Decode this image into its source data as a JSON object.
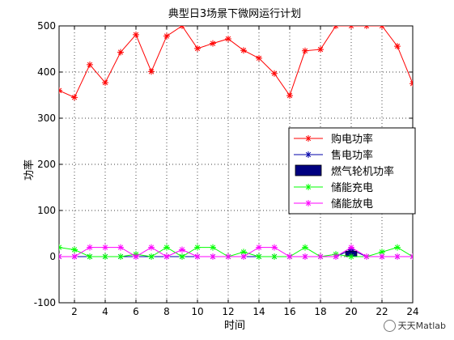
{
  "chart_data": {
    "type": "line",
    "title": "典型日3场景下微网运行计划",
    "xlabel": "时间",
    "ylabel": "功率",
    "xlim": [
      1,
      24
    ],
    "ylim": [
      -100,
      500
    ],
    "xticks": [
      2,
      4,
      6,
      8,
      10,
      12,
      14,
      16,
      18,
      20,
      22,
      24
    ],
    "yticks": [
      -100,
      0,
      100,
      200,
      300,
      400,
      500
    ],
    "grid": true,
    "legend_position": "center-right",
    "x": [
      1,
      2,
      3,
      4,
      5,
      6,
      7,
      8,
      9,
      10,
      11,
      12,
      13,
      14,
      15,
      16,
      17,
      18,
      19,
      20,
      21,
      22,
      23,
      24
    ],
    "series": [
      {
        "name": "购电功率",
        "style": "line",
        "color": "#ff0000",
        "marker": "asterisk",
        "values": [
          360,
          345,
          416,
          377,
          443,
          481,
          401,
          478,
          500,
          451,
          462,
          472,
          447,
          430,
          397,
          349,
          446,
          449,
          510,
          510,
          510,
          510,
          456,
          375
        ]
      },
      {
        "name": "售电功率",
        "style": "line",
        "color": "#0000aa",
        "marker": "asterisk",
        "values": [
          0,
          0,
          0,
          0,
          0,
          0,
          0,
          0,
          0,
          0,
          0,
          0,
          0,
          0,
          0,
          0,
          0,
          0,
          0,
          15,
          0,
          0,
          0,
          0
        ]
      },
      {
        "name": "燃气轮机功率",
        "style": "bar",
        "color": "#000080",
        "values": [
          0,
          0,
          0,
          0,
          0,
          0,
          0,
          0,
          0,
          0,
          0,
          0,
          0,
          0,
          0,
          0,
          0,
          0,
          0,
          12,
          0,
          0,
          0,
          0
        ]
      },
      {
        "name": "储能充电",
        "style": "line",
        "color": "#00ff00",
        "marker": "asterisk",
        "values": [
          20,
          15,
          0,
          0,
          0,
          5,
          0,
          20,
          0,
          20,
          20,
          0,
          10,
          0,
          0,
          0,
          20,
          0,
          5,
          0,
          0,
          10,
          20,
          0
        ]
      },
      {
        "name": "储能放电",
        "style": "line",
        "color": "#ff00ff",
        "marker": "asterisk",
        "values": [
          0,
          0,
          20,
          20,
          20,
          0,
          20,
          0,
          15,
          0,
          0,
          0,
          0,
          20,
          20,
          0,
          0,
          0,
          0,
          20,
          0,
          0,
          0,
          0
        ]
      }
    ]
  },
  "watermark": {
    "text": "天天Matlab",
    "icon": "wechat-icon"
  }
}
